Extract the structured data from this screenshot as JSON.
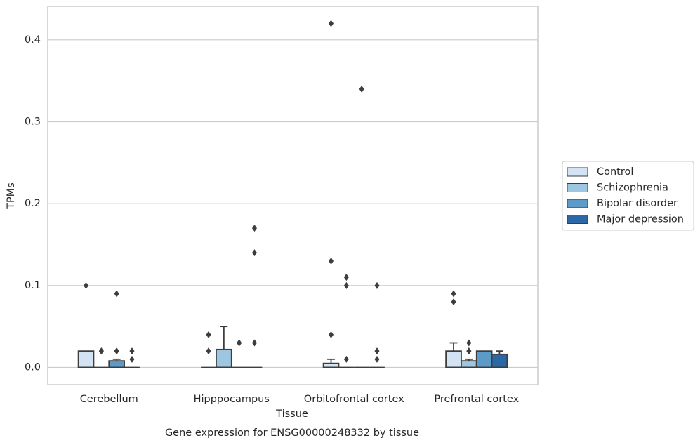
{
  "chart_data": {
    "type": "boxplot",
    "title": "Gene expression for ENSG00000248332 by tissue",
    "x_label": "Tissue",
    "y_label": "TPMs",
    "categories": [
      "Cerebellum",
      "Hipppocampus",
      "Orbitofrontal cortex",
      "Prefrontal cortex"
    ],
    "ylim": [
      -0.021,
      0.441
    ],
    "yticks": [
      {
        "value": 0,
        "label": "0.0"
      },
      0.1,
      0.2,
      0.3,
      0.4
    ],
    "grid": true,
    "legend_position": "right",
    "series": [
      {
        "name": "Control",
        "color": "#d3e3f3",
        "boxes": [
          {
            "min": 0,
            "q1": 0,
            "median": 0,
            "q3": 0.02,
            "max": 0.02,
            "outliers": [
              0.1
            ]
          },
          {
            "min": 0,
            "q1": 0,
            "median": 0,
            "q3": 0,
            "max": 0,
            "outliers": [
              0.04,
              0.02
            ]
          },
          {
            "min": 0,
            "q1": 0,
            "median": 0,
            "q3": 0.005,
            "max": 0.01,
            "outliers": [
              0.42,
              0.13,
              0.04
            ]
          },
          {
            "min": 0,
            "q1": 0,
            "median": 0,
            "q3": 0.02,
            "max": 0.03,
            "outliers": [
              0.09,
              0.08
            ]
          }
        ]
      },
      {
        "name": "Schizophrenia",
        "color": "#9dc6e0",
        "boxes": [
          {
            "min": 0,
            "q1": 0,
            "median": 0,
            "q3": 0,
            "max": 0,
            "outliers": [
              0.02,
              0.02
            ]
          },
          {
            "min": 0,
            "q1": 0,
            "median": 0,
            "q3": 0.022,
            "max": 0.05,
            "outliers": []
          },
          {
            "min": 0,
            "q1": 0,
            "median": 0,
            "q3": 0,
            "max": 0,
            "outliers": [
              0.11,
              0.1,
              0.01
            ]
          },
          {
            "min": 0,
            "q1": 0,
            "median": 0,
            "q3": 0.008,
            "max": 0.01,
            "outliers": [
              0.03,
              0.02,
              0.02
            ]
          }
        ]
      },
      {
        "name": "Bipolar disorder",
        "color": "#5c9ac8",
        "boxes": [
          {
            "min": 0,
            "q1": 0,
            "median": 0,
            "q3": 0.008,
            "max": 0.01,
            "outliers": [
              0.09,
              0.02,
              0.02
            ]
          },
          {
            "min": 0,
            "q1": 0,
            "median": 0,
            "q3": 0,
            "max": 0,
            "outliers": [
              0.03,
              0.03
            ]
          },
          {
            "min": 0,
            "q1": 0,
            "median": 0,
            "q3": 0,
            "max": 0,
            "outliers": [
              0.34
            ]
          },
          {
            "min": 0,
            "q1": 0,
            "median": 0,
            "q3": 0.02,
            "max": 0.02,
            "outliers": []
          }
        ]
      },
      {
        "name": "Major depression",
        "color": "#2a69a6",
        "boxes": [
          {
            "min": 0,
            "q1": 0,
            "median": 0,
            "q3": 0,
            "max": 0,
            "outliers": [
              0.02,
              0.01
            ]
          },
          {
            "min": 0,
            "q1": 0,
            "median": 0,
            "q3": 0,
            "max": 0,
            "outliers": [
              0.17,
              0.14,
              0.03
            ]
          },
          {
            "min": 0,
            "q1": 0,
            "median": 0,
            "q3": 0,
            "max": 0,
            "outliers": [
              0.1,
              0.02,
              0.01
            ]
          },
          {
            "min": 0,
            "q1": 0,
            "median": 0,
            "q3": 0.016,
            "max": 0.02,
            "outliers": []
          }
        ]
      }
    ]
  }
}
